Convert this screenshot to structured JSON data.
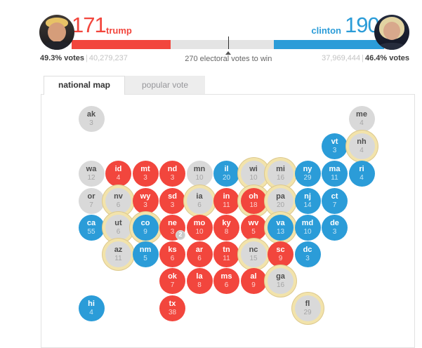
{
  "colors": {
    "rep": "#f2463d",
    "dem": "#2b9cd8",
    "uncalled": "#d9d9d9",
    "ring_inner": "#f2e3ab",
    "ring_outer": "#ddc98e"
  },
  "candidates": [
    {
      "id": "trump",
      "name": "trump",
      "electoral_votes": "171",
      "pct_label": "49.3% votes",
      "popular_votes": "40,279,237"
    },
    {
      "id": "clinton",
      "name": "clinton",
      "electoral_votes": "190",
      "pct_label": "46.4% votes",
      "popular_votes": "37,969,444"
    }
  ],
  "bar": {
    "trump_ev": 171,
    "clinton_ev": 190,
    "total_ev": 538,
    "win_threshold": 270,
    "marker_label": "270 electoral votes to win"
  },
  "tabs": [
    {
      "label": "national map",
      "active": true
    },
    {
      "label": "popular vote",
      "active": false
    }
  ],
  "map": {
    "states": [
      {
        "abbr": "ak",
        "ev": "3",
        "result": "uncalled",
        "ring": false,
        "row": 0,
        "col": 0
      },
      {
        "abbr": "me",
        "ev": "4",
        "result": "uncalled",
        "ring": false,
        "row": 0,
        "col": 10
      },
      {
        "abbr": "vt",
        "ev": "3",
        "result": "dem",
        "ring": false,
        "row": 1,
        "col": 9
      },
      {
        "abbr": "nh",
        "ev": "4",
        "result": "uncalled",
        "ring": true,
        "row": 1,
        "col": 10
      },
      {
        "abbr": "wa",
        "ev": "12",
        "result": "uncalled",
        "ring": false,
        "row": 2,
        "col": 0
      },
      {
        "abbr": "id",
        "ev": "4",
        "result": "rep",
        "ring": false,
        "row": 2,
        "col": 1
      },
      {
        "abbr": "mt",
        "ev": "3",
        "result": "rep",
        "ring": false,
        "row": 2,
        "col": 2
      },
      {
        "abbr": "nd",
        "ev": "3",
        "result": "rep",
        "ring": false,
        "row": 2,
        "col": 3
      },
      {
        "abbr": "mn",
        "ev": "10",
        "result": "uncalled",
        "ring": false,
        "row": 2,
        "col": 4
      },
      {
        "abbr": "il",
        "ev": "20",
        "result": "dem",
        "ring": false,
        "row": 2,
        "col": 5
      },
      {
        "abbr": "wi",
        "ev": "10",
        "result": "uncalled",
        "ring": true,
        "row": 2,
        "col": 6
      },
      {
        "abbr": "mi",
        "ev": "16",
        "result": "uncalled",
        "ring": true,
        "row": 2,
        "col": 7
      },
      {
        "abbr": "ny",
        "ev": "29",
        "result": "dem",
        "ring": false,
        "row": 2,
        "col": 8
      },
      {
        "abbr": "ma",
        "ev": "11",
        "result": "dem",
        "ring": false,
        "row": 2,
        "col": 9
      },
      {
        "abbr": "ri",
        "ev": "4",
        "result": "dem",
        "ring": false,
        "row": 2,
        "col": 10
      },
      {
        "abbr": "or",
        "ev": "7",
        "result": "uncalled",
        "ring": false,
        "row": 3,
        "col": 0
      },
      {
        "abbr": "nv",
        "ev": "6",
        "result": "uncalled",
        "ring": true,
        "row": 3,
        "col": 1
      },
      {
        "abbr": "wy",
        "ev": "3",
        "result": "rep",
        "ring": false,
        "row": 3,
        "col": 2
      },
      {
        "abbr": "sd",
        "ev": "3",
        "result": "rep",
        "ring": false,
        "row": 3,
        "col": 3
      },
      {
        "abbr": "ia",
        "ev": "6",
        "result": "uncalled",
        "ring": true,
        "row": 3,
        "col": 4
      },
      {
        "abbr": "in",
        "ev": "11",
        "result": "rep",
        "ring": false,
        "row": 3,
        "col": 5
      },
      {
        "abbr": "oh",
        "ev": "18",
        "result": "rep",
        "ring": true,
        "row": 3,
        "col": 6
      },
      {
        "abbr": "pa",
        "ev": "20",
        "result": "uncalled",
        "ring": true,
        "row": 3,
        "col": 7
      },
      {
        "abbr": "nj",
        "ev": "14",
        "result": "dem",
        "ring": false,
        "row": 3,
        "col": 8
      },
      {
        "abbr": "ct",
        "ev": "7",
        "result": "dem",
        "ring": false,
        "row": 3,
        "col": 9
      },
      {
        "abbr": "ca",
        "ev": "55",
        "result": "dem",
        "ring": false,
        "row": 4,
        "col": 0
      },
      {
        "abbr": "ut",
        "ev": "6",
        "result": "uncalled",
        "ring": true,
        "row": 4,
        "col": 1
      },
      {
        "abbr": "co",
        "ev": "9",
        "result": "dem",
        "ring": true,
        "row": 4,
        "col": 2
      },
      {
        "abbr": "ne",
        "ev": "3",
        "result": "rep",
        "ring": false,
        "row": 4,
        "col": 3,
        "badge": "2"
      },
      {
        "abbr": "mo",
        "ev": "10",
        "result": "rep",
        "ring": false,
        "row": 4,
        "col": 4
      },
      {
        "abbr": "ky",
        "ev": "8",
        "result": "rep",
        "ring": false,
        "row": 4,
        "col": 5
      },
      {
        "abbr": "wv",
        "ev": "5",
        "result": "rep",
        "ring": false,
        "row": 4,
        "col": 6
      },
      {
        "abbr": "va",
        "ev": "13",
        "result": "dem",
        "ring": true,
        "row": 4,
        "col": 7
      },
      {
        "abbr": "md",
        "ev": "10",
        "result": "dem",
        "ring": false,
        "row": 4,
        "col": 8
      },
      {
        "abbr": "de",
        "ev": "3",
        "result": "dem",
        "ring": false,
        "row": 4,
        "col": 9
      },
      {
        "abbr": "az",
        "ev": "11",
        "result": "uncalled",
        "ring": true,
        "row": 5,
        "col": 1
      },
      {
        "abbr": "nm",
        "ev": "5",
        "result": "dem",
        "ring": false,
        "row": 5,
        "col": 2
      },
      {
        "abbr": "ks",
        "ev": "6",
        "result": "rep",
        "ring": false,
        "row": 5,
        "col": 3
      },
      {
        "abbr": "ar",
        "ev": "6",
        "result": "rep",
        "ring": false,
        "row": 5,
        "col": 4
      },
      {
        "abbr": "tn",
        "ev": "11",
        "result": "rep",
        "ring": false,
        "row": 5,
        "col": 5
      },
      {
        "abbr": "nc",
        "ev": "15",
        "result": "uncalled",
        "ring": true,
        "row": 5,
        "col": 6
      },
      {
        "abbr": "sc",
        "ev": "9",
        "result": "rep",
        "ring": false,
        "row": 5,
        "col": 7
      },
      {
        "abbr": "dc",
        "ev": "3",
        "result": "dem",
        "ring": false,
        "row": 5,
        "col": 8
      },
      {
        "abbr": "ok",
        "ev": "7",
        "result": "rep",
        "ring": false,
        "row": 6,
        "col": 3
      },
      {
        "abbr": "la",
        "ev": "8",
        "result": "rep",
        "ring": false,
        "row": 6,
        "col": 4
      },
      {
        "abbr": "ms",
        "ev": "6",
        "result": "rep",
        "ring": false,
        "row": 6,
        "col": 5
      },
      {
        "abbr": "al",
        "ev": "9",
        "result": "rep",
        "ring": false,
        "row": 6,
        "col": 6
      },
      {
        "abbr": "ga",
        "ev": "16",
        "result": "uncalled",
        "ring": true,
        "row": 6,
        "col": 7
      },
      {
        "abbr": "hi",
        "ev": "4",
        "result": "dem",
        "ring": false,
        "row": 7,
        "col": 0
      },
      {
        "abbr": "tx",
        "ev": "38",
        "result": "rep",
        "ring": false,
        "row": 7,
        "col": 3
      },
      {
        "abbr": "fl",
        "ev": "29",
        "result": "uncalled",
        "ring": true,
        "row": 7,
        "col": 8
      }
    ]
  }
}
